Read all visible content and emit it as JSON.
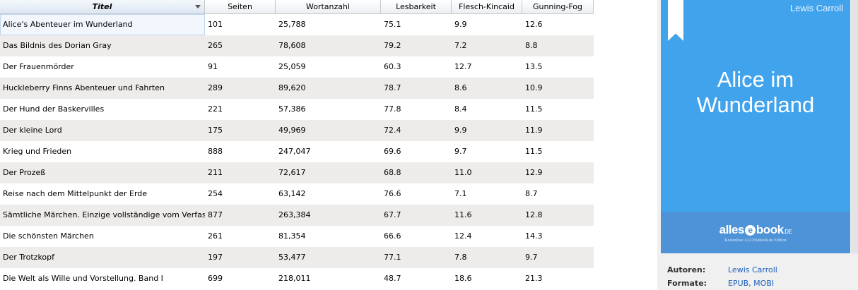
{
  "table": {
    "columns": [
      "Titel",
      "Seiten",
      "Wortanzahl",
      "Lesbarkeit",
      "Flesch-Kincaid",
      "Gunning-Fog"
    ],
    "rows": [
      [
        "Alice's Abenteuer im Wunderland",
        "101",
        "25,788",
        "75.1",
        "9.9",
        "12.6"
      ],
      [
        "Das Bildnis des Dorian Gray",
        "265",
        "78,608",
        "79.2",
        "7.2",
        "8.8"
      ],
      [
        "Der Frauenmörder",
        "91",
        "25,059",
        "60.3",
        "12.7",
        "13.5"
      ],
      [
        "Huckleberry Finns Abenteuer und Fahrten",
        "289",
        "89,620",
        "78.7",
        "8.6",
        "10.9"
      ],
      [
        "Der Hund der Baskervilles",
        "221",
        "57,386",
        "77.8",
        "8.4",
        "11.5"
      ],
      [
        "Der kleine Lord",
        "175",
        "49,969",
        "72.4",
        "9.9",
        "11.9"
      ],
      [
        "Krieg und Frieden",
        "888",
        "247,047",
        "69.6",
        "9.7",
        "11.5"
      ],
      [
        "Der Prozeß",
        "211",
        "72,617",
        "68.8",
        "11.0",
        "12.9"
      ],
      [
        "Reise nach dem Mittelpunkt der Erde",
        "254",
        "63,142",
        "76.6",
        "7.1",
        "8.7"
      ],
      [
        "Sämtliche Märchen. Einzige vollständige vom Verfass...",
        "877",
        "263,384",
        "67.7",
        "11.6",
        "12.8"
      ],
      [
        "Die schönsten Märchen",
        "261",
        "81,354",
        "66.6",
        "12.4",
        "14.3"
      ],
      [
        "Der Trotzkopf",
        "197",
        "53,477",
        "77.1",
        "7.8",
        "9.7"
      ],
      [
        "Die Welt als Wille und Vorstellung. Band I",
        "699",
        "218,011",
        "48.7",
        "18.6",
        "21.3"
      ]
    ]
  },
  "cover": {
    "author": "Lewis Carroll",
    "title_line1": "Alice im",
    "title_line2": "Wunderland",
    "logo_main": "alles",
    "logo_circle": "e",
    "logo_rest": "book",
    "logo_suffix": ".DE",
    "tagline": "Kostenlose ALLESebook.de Edition"
  },
  "details": {
    "authors_label": "Autoren:",
    "authors_value": "Lewis Carroll",
    "formats_label": "Formate:",
    "formats_value": "EPUB, MOBI"
  },
  "colors": {
    "cover_background": "#41a3ec",
    "cover_footer": "#4e93d8",
    "link": "#1b5fbd",
    "row_alt": "#edecea"
  },
  "icons": [
    "sort-descending-icon",
    "bookmark-ribbon-icon"
  ]
}
